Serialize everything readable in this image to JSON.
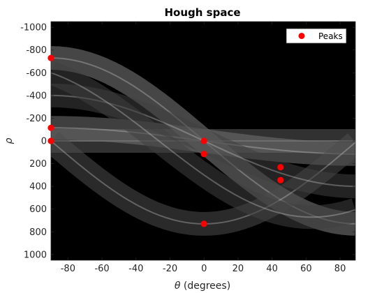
{
  "chart_data": {
    "type": "heatmap",
    "title": "Hough space",
    "xlabel_symbol": "θ",
    "xlabel_rest": " (degrees)",
    "ylabel": "ρ",
    "xlim": [
      -90,
      89
    ],
    "ylim": [
      -1050,
      1050
    ],
    "y_reversed": true,
    "x_ticks": [
      -80,
      -60,
      -40,
      -20,
      0,
      20,
      40,
      60,
      80
    ],
    "y_ticks": [
      -1000,
      -800,
      -600,
      -400,
      -200,
      0,
      200,
      400,
      600,
      800,
      1000
    ],
    "background": "#000000",
    "peak_color": "#ff0000",
    "legend": {
      "label": "Peaks",
      "location": "top-right"
    },
    "peaks": [
      {
        "theta": -90,
        "rho": -730
      },
      {
        "theta": -90,
        "rho": -115
      },
      {
        "theta": -90,
        "rho": 0
      },
      {
        "theta": 0,
        "rho": 0
      },
      {
        "theta": 0,
        "rho": 115
      },
      {
        "theta": 0,
        "rho": 730
      },
      {
        "theta": 45,
        "rho": 232
      },
      {
        "theta": 45,
        "rho": 345
      }
    ],
    "sinusoid_bands": [
      {
        "a": 0,
        "b": 0,
        "intensity": 0.35
      },
      {
        "a": 0,
        "b": 115,
        "intensity": 0.45
      },
      {
        "a": 0,
        "b": 730,
        "intensity": 0.5
      },
      {
        "a": 730,
        "b": 0,
        "intensity": 0.3
      },
      {
        "a": 0,
        "b": 400,
        "intensity": 0.25
      },
      {
        "a": 300,
        "b": 600,
        "intensity": 0.25
      }
    ]
  }
}
